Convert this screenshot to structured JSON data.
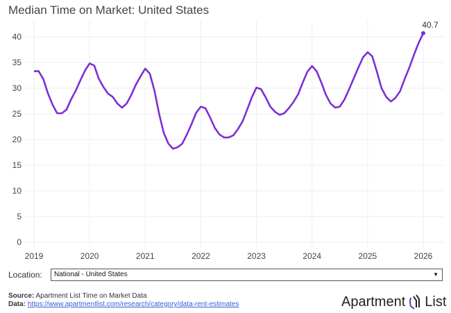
{
  "chart_data": {
    "type": "line",
    "title": "Median Time on Market: United States",
    "xlabel": "",
    "ylabel": "",
    "ylim": [
      0,
      42
    ],
    "yticks": [
      0,
      5,
      10,
      15,
      20,
      25,
      30,
      35,
      40
    ],
    "xticks": [
      "2019",
      "2020",
      "2021",
      "2022",
      "2023",
      "2024",
      "2025",
      "2026"
    ],
    "xlim_years": [
      2019,
      2026.15
    ],
    "grid": true,
    "line_color": "#7b2fd6",
    "end_label": "40.7",
    "series": [
      {
        "name": "National - United States",
        "start": "2019-01",
        "frequency": "monthly",
        "values": [
          33.3,
          33.3,
          31.8,
          29.0,
          26.8,
          25.1,
          25.1,
          25.8,
          27.8,
          29.5,
          31.5,
          33.4,
          34.8,
          34.4,
          31.8,
          30.2,
          28.9,
          28.3,
          27.0,
          26.2,
          27.0,
          28.7,
          30.7,
          32.3,
          33.8,
          32.8,
          29.5,
          25.0,
          21.3,
          19.2,
          18.2,
          18.5,
          19.2,
          21.0,
          23.0,
          25.2,
          26.4,
          26.1,
          24.3,
          22.3,
          21.0,
          20.4,
          20.4,
          20.8,
          22.0,
          23.5,
          25.8,
          28.2,
          30.1,
          29.8,
          28.2,
          26.4,
          25.4,
          24.8,
          25.1,
          26.1,
          27.3,
          28.8,
          31.1,
          33.2,
          34.3,
          33.3,
          31.1,
          28.7,
          27.0,
          26.2,
          26.4,
          27.8,
          29.8,
          31.9,
          34.0,
          36.0,
          37.0,
          36.2,
          33.2,
          30.0,
          28.3,
          27.4,
          28.1,
          29.4,
          31.8,
          34.0,
          36.5,
          38.8,
          40.7
        ]
      }
    ]
  },
  "controls": {
    "location_label": "Location:",
    "location_value": "National - United States"
  },
  "footer": {
    "source_label": "Source:",
    "source_text": "Apartment List Time on Market Data",
    "data_label": "Data:",
    "data_link": "https://www.apartmentlist.com/research/category/data-rent-estimates",
    "logo_left": "Apartment",
    "logo_right": "List"
  }
}
